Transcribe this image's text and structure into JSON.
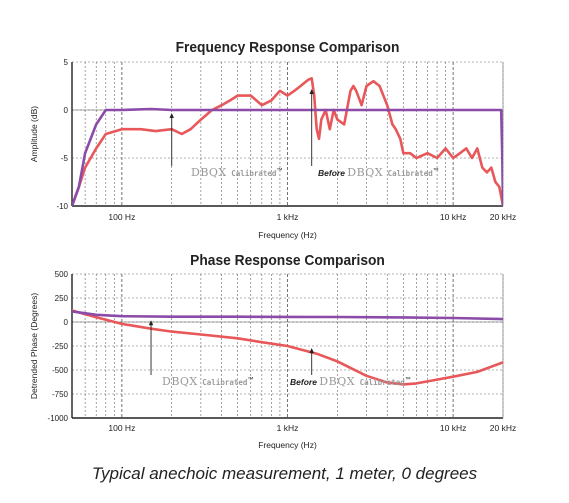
{
  "chart_data": [
    {
      "type": "line",
      "title": "Frequency Response Comparison",
      "xlabel": "Frequency (Hz)",
      "ylabel": "Amplitude (dB)",
      "xscale": "log",
      "xlim": [
        50,
        20000
      ],
      "ylim": [
        -10,
        5
      ],
      "yticks": [
        "5",
        "0",
        "-5",
        "-10"
      ],
      "xtick_labels": [
        {
          "x": 100,
          "label": "100 Hz"
        },
        {
          "x": 1000,
          "label": "1 kHz"
        },
        {
          "x": 10000,
          "label": "10 kHz"
        },
        {
          "x": 20000,
          "label": "20 kHz"
        }
      ],
      "grid": "dashed",
      "series": [
        {
          "color": "#8b4ba8",
          "x": [
            50,
            55,
            60,
            70,
            80,
            100,
            150,
            200,
            300,
            500,
            1000,
            2000,
            5000,
            10000,
            19500,
            19800,
            20000
          ],
          "y": [
            -10,
            -8,
            -4.5,
            -1.5,
            0,
            0,
            0.1,
            0,
            0,
            0,
            0,
            0,
            0,
            0,
            0,
            -5,
            -10
          ]
        },
        {
          "color": "#e8585a",
          "x": [
            50,
            55,
            60,
            70,
            80,
            100,
            130,
            160,
            200,
            230,
            260,
            300,
            350,
            400,
            450,
            500,
            600,
            700,
            800,
            900,
            1000,
            1100,
            1200,
            1300,
            1350,
            1400,
            1450,
            1500,
            1550,
            1600,
            1700,
            1800,
            1900,
            2000,
            2200,
            2400,
            2500,
            2600,
            2800,
            3000,
            3300,
            3600,
            4000,
            4300,
            4500,
            4800,
            5000,
            5500,
            6000,
            7000,
            8000,
            9000,
            10000,
            11000,
            12000,
            13000,
            14000,
            15000,
            16000,
            17000,
            18000,
            19000,
            20000
          ],
          "y": [
            -10,
            -8,
            -6,
            -4,
            -2.5,
            -2,
            -2,
            -2.2,
            -2,
            -2.5,
            -2,
            -1,
            0,
            0.5,
            1,
            1.5,
            1.5,
            0.5,
            1,
            2,
            1.5,
            2,
            2.5,
            3,
            3.2,
            3.3,
            1.5,
            -2,
            -3,
            -1,
            0,
            -2,
            0,
            -1,
            -1.5,
            2,
            2.5,
            2,
            0.5,
            2.5,
            3,
            2.5,
            0.5,
            -1.5,
            -2,
            -3,
            -4.5,
            -4.5,
            -5,
            -4.5,
            -5,
            -4,
            -5,
            -4.5,
            -4,
            -5,
            -4,
            -6,
            -6.5,
            -6,
            -7.5,
            -8,
            -10
          ]
        }
      ],
      "annotations": [
        {
          "brand": "DBQX",
          "suffix": "Calibrated",
          "tm": "™",
          "points_to": [
            200,
            0
          ]
        },
        {
          "prefix": "Before",
          "brand": "DBQX",
          "suffix": "Calibrated",
          "tm": "™",
          "points_to": [
            1400,
            2.5
          ]
        }
      ]
    },
    {
      "type": "line",
      "title": "Phase Response Comparison",
      "xlabel": "Frequency (Hz)",
      "ylabel": "Detrended Phase (Degrees)",
      "xscale": "log",
      "xlim": [
        50,
        20000
      ],
      "ylim": [
        -1000,
        500
      ],
      "yticks": [
        "500",
        "250",
        "0",
        "-250",
        "-500",
        "-750",
        "-1000"
      ],
      "xtick_labels": [
        {
          "x": 100,
          "label": "100 Hz"
        },
        {
          "x": 1000,
          "label": "1 kHz"
        },
        {
          "x": 10000,
          "label": "10 kHz"
        },
        {
          "x": 20000,
          "label": "20 kHz"
        }
      ],
      "grid": "dashed",
      "series": [
        {
          "color": "#8b4ba8",
          "x": [
            50,
            70,
            100,
            200,
            500,
            1000,
            2000,
            5000,
            10000,
            20000
          ],
          "y": [
            110,
            75,
            60,
            55,
            55,
            53,
            52,
            48,
            42,
            30
          ]
        },
        {
          "color": "#e8585a",
          "x": [
            50,
            70,
            100,
            150,
            200,
            300,
            500,
            700,
            1000,
            1500,
            2000,
            3000,
            4000,
            5000,
            6000,
            8000,
            10000,
            14000,
            20000
          ],
          "y": [
            120,
            50,
            -20,
            -70,
            -100,
            -130,
            -170,
            -210,
            -250,
            -330,
            -410,
            -560,
            -630,
            -650,
            -640,
            -600,
            -570,
            -520,
            -420
          ]
        }
      ],
      "annotations": [
        {
          "brand": "DBQX",
          "suffix": "Calibrated",
          "tm": "™",
          "points_to": [
            150,
            50
          ]
        },
        {
          "prefix": "Before",
          "brand": "DBQX",
          "suffix": "Calibrated",
          "tm": "™",
          "points_to": [
            1400,
            -240
          ]
        }
      ]
    }
  ],
  "caption": "Typical anechoic measurement, 1 meter, 0 degrees",
  "colors": {
    "purple": "#8b4ba8",
    "red": "#e8585a",
    "axis": "#222222",
    "grid": "#666666",
    "annotation_gray": "#9a9a9a"
  }
}
